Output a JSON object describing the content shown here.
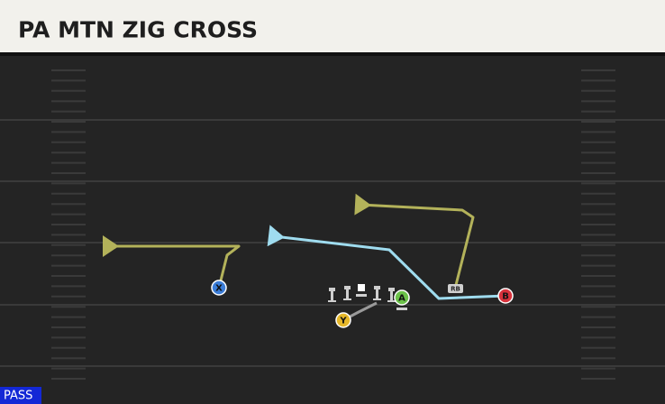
{
  "header": {
    "title": "PA MTN ZIG CROSS"
  },
  "players": [
    {
      "label": "X"
    },
    {
      "label": "Y"
    },
    {
      "label": "A"
    },
    {
      "label": "B"
    },
    {
      "label": "RB"
    }
  ],
  "play_type": "PASS"
}
